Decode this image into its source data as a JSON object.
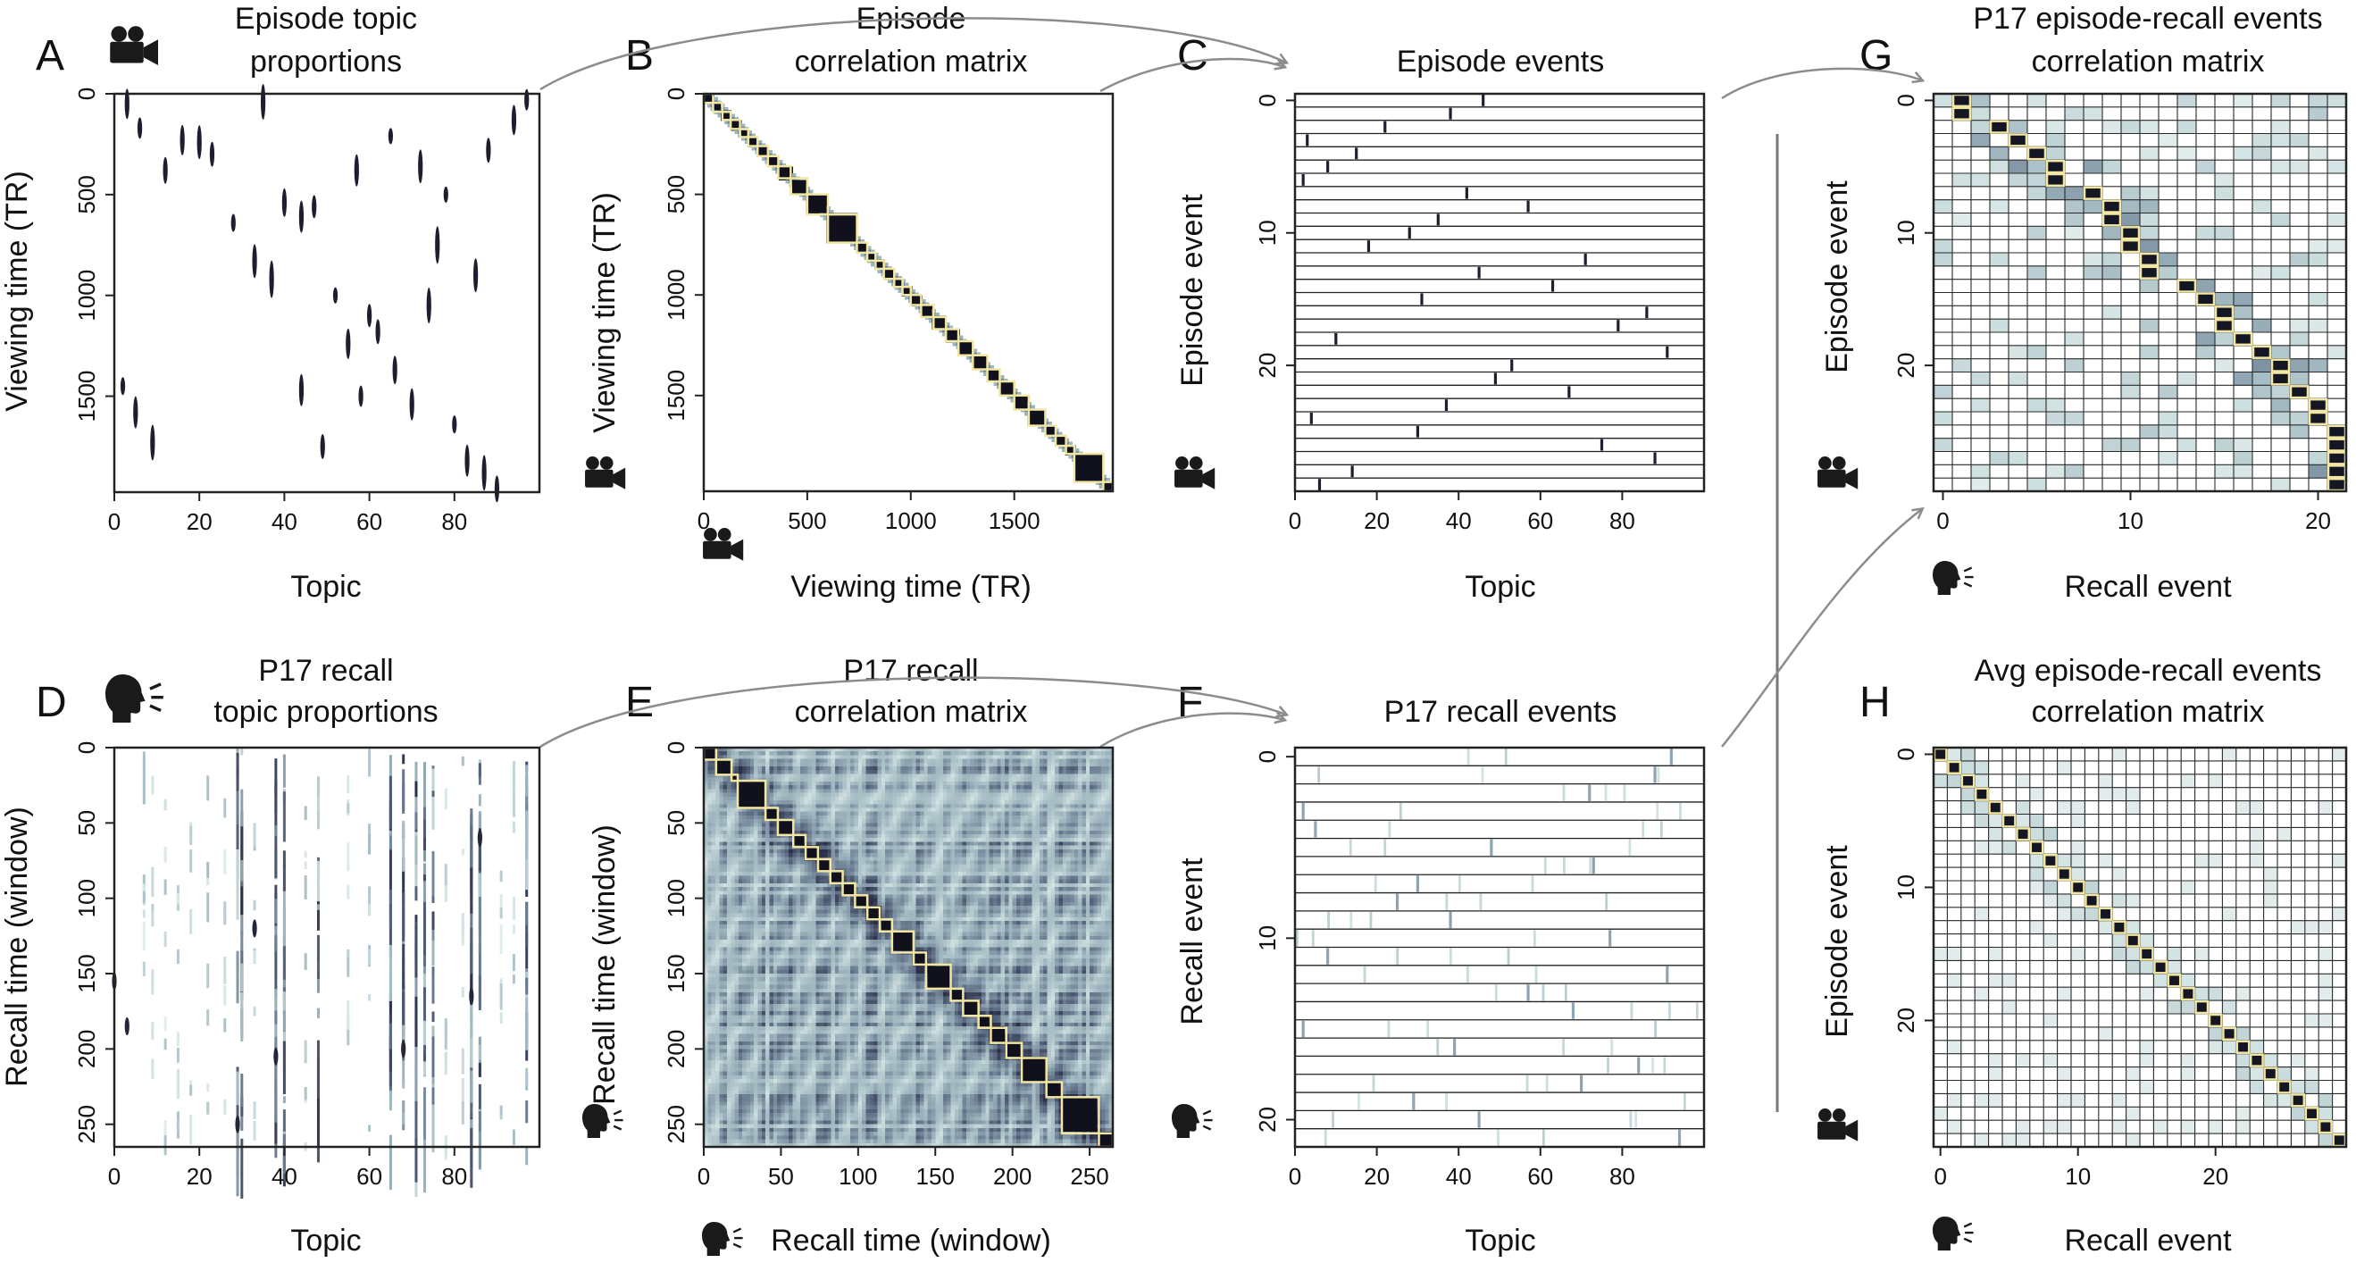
{
  "colors": {
    "cmap": [
      "#ffffff",
      "#cfe0e0",
      "#9fb6bf",
      "#5f6f86",
      "#2b2f48",
      "#0e0e18"
    ],
    "highlight": "#f2e6a3",
    "arrow": "#8c8c8c",
    "event_line": "#222222",
    "icon": "#1a1a1a"
  },
  "icons": {
    "movie": "film-camera-icon",
    "recall": "speaking-head-icon"
  },
  "chart_data": [
    {
      "id": "A",
      "letter": "A",
      "type": "heatmap",
      "title": [
        "Episode topic",
        "proportions"
      ],
      "xlabel": "Topic",
      "ylabel": "Viewing time (TR)",
      "xlim": [
        0,
        100
      ],
      "ylim": [
        0,
        1976
      ],
      "xticks": [
        0,
        20,
        40,
        60,
        80
      ],
      "yticks": [
        0,
        500,
        1000,
        1500
      ],
      "x_icon": "",
      "y_icon": "",
      "title_icon": "movie",
      "spots": [
        [
          3,
          50
        ],
        [
          6,
          170
        ],
        [
          12,
          380
        ],
        [
          20,
          240
        ],
        [
          23,
          300
        ],
        [
          16,
          230
        ],
        [
          28,
          640
        ],
        [
          33,
          830
        ],
        [
          37,
          920
        ],
        [
          40,
          540
        ],
        [
          44,
          610
        ],
        [
          47,
          560
        ],
        [
          52,
          1000
        ],
        [
          55,
          1240
        ],
        [
          60,
          1100
        ],
        [
          62,
          1180
        ],
        [
          66,
          1370
        ],
        [
          70,
          1540
        ],
        [
          80,
          1640
        ],
        [
          83,
          1820
        ],
        [
          87,
          1880
        ],
        [
          90,
          1960
        ],
        [
          2,
          1450
        ],
        [
          5,
          1580
        ],
        [
          76,
          750
        ],
        [
          74,
          1050
        ],
        [
          72,
          360
        ],
        [
          78,
          500
        ],
        [
          85,
          900
        ],
        [
          88,
          280
        ],
        [
          94,
          130
        ],
        [
          97,
          30
        ],
        [
          65,
          210
        ],
        [
          57,
          380
        ],
        [
          44,
          1470
        ],
        [
          49,
          1750
        ],
        [
          58,
          1500
        ],
        [
          35,
          40
        ],
        [
          9,
          1730
        ]
      ]
    },
    {
      "id": "B",
      "letter": "B",
      "type": "heatmap",
      "title": [
        "Episode",
        "correlation matrix"
      ],
      "xlabel": "Viewing time (TR)",
      "ylabel": "Viewing time (TR)",
      "xlim": [
        0,
        1976
      ],
      "ylim": [
        0,
        1976
      ],
      "xticks": [
        0,
        500,
        1000,
        1500
      ],
      "yticks": [
        0,
        500,
        1000,
        1500
      ],
      "x_icon": "movie",
      "y_icon": "movie",
      "title_icon": "",
      "boundaries": [
        0,
        45,
        90,
        130,
        175,
        215,
        260,
        310,
        360,
        420,
        500,
        600,
        740,
        790,
        830,
        870,
        920,
        960,
        1000,
        1050,
        1110,
        1170,
        1230,
        1300,
        1370,
        1430,
        1500,
        1570,
        1650,
        1700,
        1750,
        1790,
        1930,
        1976
      ]
    },
    {
      "id": "C",
      "letter": "C",
      "type": "event_heatmap",
      "title": [
        "Episode events"
      ],
      "xlabel": "Topic",
      "ylabel": "Episode event",
      "xlim": [
        0,
        100
      ],
      "rows": 30,
      "xticks": [
        0,
        20,
        40,
        60,
        80
      ],
      "yticks": [
        0,
        10,
        20
      ],
      "x_icon": "",
      "y_icon": "movie",
      "title_icon": "",
      "peaks": [
        46,
        38,
        22,
        3,
        15,
        8,
        2,
        42,
        57,
        35,
        28,
        18,
        71,
        45,
        63,
        31,
        86,
        79,
        10,
        91,
        53,
        49,
        67,
        37,
        4,
        30,
        75,
        88,
        14,
        6
      ]
    },
    {
      "id": "D",
      "letter": "D",
      "type": "heatmap",
      "title": [
        "P17 recall",
        "topic proportions"
      ],
      "xlabel": "Topic",
      "ylabel": "Recall time (window)",
      "xlim": [
        0,
        100
      ],
      "ylim": [
        0,
        265
      ],
      "xticks": [
        0,
        20,
        40,
        60,
        80
      ],
      "yticks": [
        0,
        50,
        100,
        150,
        200,
        250
      ],
      "x_icon": "",
      "y_icon": "",
      "title_icon": "recall",
      "stripes": [
        29,
        30,
        38,
        40,
        48,
        65,
        68,
        71,
        73,
        75,
        84,
        86,
        97,
        7,
        9,
        12,
        15,
        18,
        22,
        26,
        33,
        45,
        55,
        60,
        78,
        82,
        91,
        94
      ]
    },
    {
      "id": "E",
      "letter": "E",
      "type": "heatmap",
      "title": [
        "P17 recall",
        "correlation matrix"
      ],
      "xlabel": "Recall time (window)",
      "ylabel": "Recall time (window)",
      "xlim": [
        0,
        265
      ],
      "ylim": [
        0,
        265
      ],
      "xticks": [
        0,
        50,
        100,
        150,
        200,
        250
      ],
      "yticks": [
        0,
        50,
        100,
        150,
        200,
        250
      ],
      "x_icon": "recall",
      "y_icon": "recall",
      "title_icon": "",
      "boundaries": [
        0,
        8,
        18,
        22,
        40,
        48,
        58,
        66,
        74,
        82,
        90,
        98,
        106,
        114,
        122,
        136,
        144,
        160,
        168,
        178,
        186,
        196,
        206,
        222,
        232,
        256,
        265
      ]
    },
    {
      "id": "F",
      "letter": "F",
      "type": "event_heatmap",
      "title": [
        "P17 recall events"
      ],
      "xlabel": "Topic",
      "ylabel": "Recall event",
      "xlim": [
        0,
        100
      ],
      "rows": 22,
      "xticks": [
        0,
        20,
        40,
        60,
        80
      ],
      "yticks": [
        0,
        10,
        20
      ],
      "x_icon": "",
      "y_icon": "recall",
      "title_icon": "",
      "peaks": [
        92,
        88,
        72,
        2,
        5,
        48,
        73,
        30,
        25,
        38,
        77,
        8,
        91,
        57,
        68,
        2,
        39,
        84,
        70,
        29,
        45,
        94
      ]
    },
    {
      "id": "G",
      "letter": "G",
      "type": "grid_heatmap",
      "title": [
        "P17 episode-recall events",
        "correlation matrix"
      ],
      "xlabel": "Recall event",
      "ylabel": "Episode event",
      "cols": 22,
      "rows": 30,
      "xticks": [
        0,
        10,
        20
      ],
      "yticks": [
        0,
        10,
        20
      ],
      "x_icon": "recall",
      "y_icon": "movie",
      "title_icon": "",
      "match": [
        1,
        1,
        3,
        4,
        5,
        6,
        6,
        8,
        9,
        9,
        10,
        10,
        11,
        11,
        13,
        14,
        15,
        15,
        16,
        17,
        18,
        18,
        19,
        20,
        20,
        21,
        21,
        21,
        21,
        21
      ]
    },
    {
      "id": "H",
      "letter": "H",
      "type": "grid_heatmap",
      "title": [
        "Avg episode-recall events",
        "correlation matrix"
      ],
      "xlabel": "Recall event",
      "ylabel": "Episode event",
      "cols": 30,
      "rows": 30,
      "xticks": [
        0,
        10,
        20
      ],
      "yticks": [
        0,
        10,
        20
      ],
      "x_icon": "recall",
      "y_icon": "movie",
      "title_icon": "",
      "match": [
        0,
        1,
        2,
        3,
        4,
        5,
        6,
        7,
        8,
        9,
        10,
        11,
        12,
        13,
        14,
        15,
        16,
        17,
        18,
        19,
        20,
        21,
        22,
        23,
        24,
        25,
        26,
        27,
        28,
        29
      ]
    }
  ]
}
